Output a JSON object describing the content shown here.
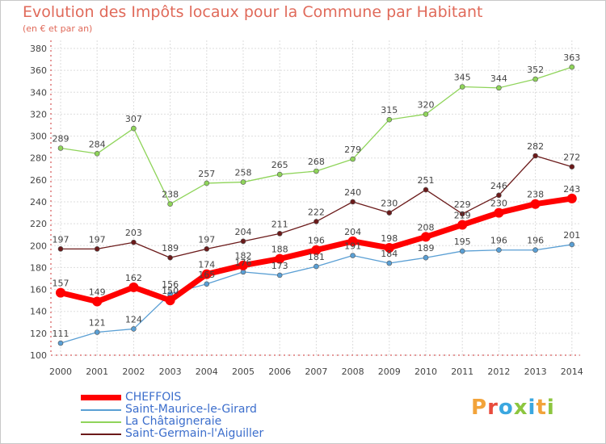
{
  "header": {
    "title": "Evolution des Impôts locaux pour la Commune par Habitant",
    "subtitle": "(en € et par an)"
  },
  "logo": {
    "letters": [
      "P",
      "r",
      "o",
      "x",
      "i",
      "t",
      "i"
    ],
    "colors": [
      "#f2a33a",
      "#e84c3d",
      "#3aa7e0",
      "#8cc63f",
      "#3aa7e0",
      "#f2a33a",
      "#8cc63f"
    ]
  },
  "chart_data": {
    "type": "line",
    "title": "Evolution des Impôts locaux pour la Commune par Habitant",
    "subtitle": "(en € et par an)",
    "x": [
      "2000",
      "2001",
      "2002",
      "2003",
      "2004",
      "2005",
      "2006",
      "2007",
      "2008",
      "2009",
      "2010",
      "2011",
      "2012",
      "2013",
      "2014"
    ],
    "ylim": [
      100,
      380
    ],
    "yticks": [
      100,
      120,
      140,
      160,
      180,
      200,
      220,
      240,
      260,
      280,
      300,
      320,
      340,
      360,
      380
    ],
    "grid": "horizontal",
    "legend_position": "bottom-left",
    "series": [
      {
        "name": "CHEFFOIS",
        "color": "#ff0000",
        "values": [
          157,
          149,
          162,
          150,
          174,
          182,
          188,
          196,
          204,
          198,
          208,
          219,
          230,
          238,
          243
        ]
      },
      {
        "name": "Saint-Maurice-le-Girard",
        "color": "#5a9fd4",
        "values": [
          111,
          121,
          124,
          156,
          165,
          176,
          173,
          181,
          191,
          184,
          189,
          195,
          196,
          196,
          201
        ]
      },
      {
        "name": "La Châtaigneraie",
        "color": "#8fd45a",
        "values": [
          289,
          284,
          307,
          238,
          257,
          258,
          265,
          268,
          279,
          315,
          320,
          345,
          344,
          352,
          363
        ]
      },
      {
        "name": "Saint-Germain-l'Aiguiller",
        "color": "#6b1a1a",
        "values": [
          197,
          197,
          203,
          189,
          197,
          204,
          211,
          222,
          240,
          230,
          251,
          229,
          246,
          282,
          272
        ]
      }
    ]
  }
}
